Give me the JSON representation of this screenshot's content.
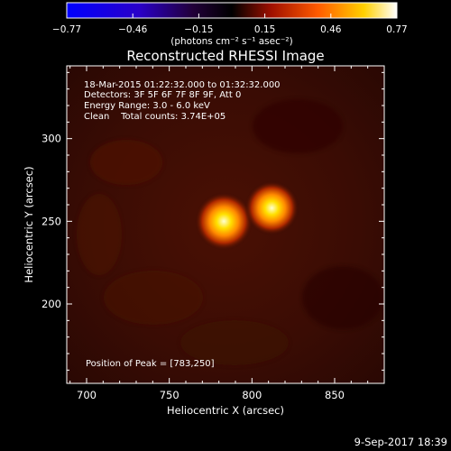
{
  "colors": {
    "background": "#000000",
    "axes": "#ffffff",
    "text": "#ffffff"
  },
  "colorbar": {
    "tick_labels": [
      "−0.77",
      "−0.46",
      "−0.15",
      "0.15",
      "0.46",
      "0.77"
    ],
    "unit_label": "(photons cm⁻² s⁻¹ asec⁻²)",
    "stops": [
      {
        "offset": 0.0,
        "color": "#0000ff"
      },
      {
        "offset": 0.22,
        "color": "#2a00c8"
      },
      {
        "offset": 0.38,
        "color": "#22003a"
      },
      {
        "offset": 0.5,
        "color": "#000000"
      },
      {
        "offset": 0.62,
        "color": "#a01000"
      },
      {
        "offset": 0.76,
        "color": "#ff5a00"
      },
      {
        "offset": 0.9,
        "color": "#ffd000"
      },
      {
        "offset": 1.0,
        "color": "#ffffff"
      }
    ]
  },
  "chart_data": {
    "type": "heatmap",
    "title": "Reconstructed RHESSI Image",
    "xlabel": "Heliocentric X (arcsec)",
    "ylabel": "Heliocentric Y (arcsec)",
    "xlim": [
      688,
      880
    ],
    "ylim": [
      152,
      344
    ],
    "x_ticks": [
      700,
      750,
      800,
      850
    ],
    "y_ticks": [
      200,
      250,
      300
    ],
    "value_range": [
      -0.77,
      0.77
    ],
    "sources": [
      {
        "x": 783,
        "y": 250,
        "peak": 0.77
      },
      {
        "x": 812,
        "y": 258,
        "peak": 0.72
      }
    ],
    "info_lines": [
      "18-Mar-2015 01:22:32.000 to 01:32:32.000",
      "Detectors: 3F 5F 6F 7F 8F 9F, Att 0",
      "Energy Range: 3.0 - 6.0 keV",
      "Clean    Total counts: 3.74E+05"
    ],
    "peak_label": "Position of Peak = [783,250]"
  },
  "footer": {
    "date": "9-Sep-2017 18:39"
  }
}
